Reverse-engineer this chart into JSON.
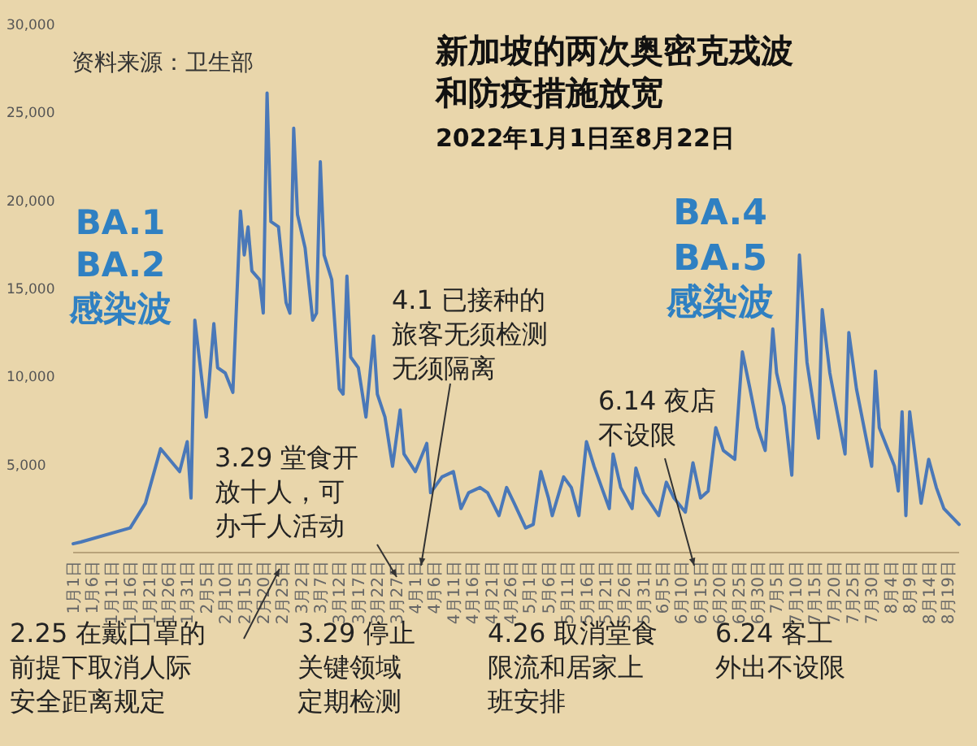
{
  "chart_data": {
    "type": "line",
    "title": "新加坡的两次奥密克戎波和防疫措施放宽",
    "subtitle": "2022年1月1日至8月22日",
    "annotations": [
      "资料来源：卫生部",
      "BA.1 BA.2 感染波",
      "BA.4 BA.5 感染波",
      "2.25 在戴口罩的前提下取消人际安全距离规定",
      "3.29 堂食开放十人，可办千人活动",
      "3.29 停止关键领域定期检测",
      "4.1 已接种的旅客无须检测无须隔离",
      "4.26 取消堂食限流和居家上班安排",
      "6.14 夜店不设限",
      "6.24 客工外出不设限"
    ],
    "x": [
      "2022-01-01",
      "2022-01-03",
      "2022-01-16",
      "2022-01-20",
      "2022-01-24",
      "2022-01-29",
      "2022-01-31",
      "2022-02-01",
      "2022-02-02",
      "2022-02-05",
      "2022-02-07",
      "2022-02-08",
      "2022-02-10",
      "2022-02-12",
      "2022-02-14",
      "2022-02-15",
      "2022-02-16",
      "2022-02-17",
      "2022-02-19",
      "2022-02-20",
      "2022-02-21",
      "2022-02-22",
      "2022-02-24",
      "2022-02-26",
      "2022-02-27",
      "2022-02-28",
      "2022-03-01",
      "2022-03-03",
      "2022-03-05",
      "2022-03-06",
      "2022-03-07",
      "2022-03-08",
      "2022-03-10",
      "2022-03-12",
      "2022-03-13",
      "2022-03-14",
      "2022-03-15",
      "2022-03-17",
      "2022-03-19",
      "2022-03-21",
      "2022-03-22",
      "2022-03-24",
      "2022-03-26",
      "2022-03-28",
      "2022-03-29",
      "2022-04-01",
      "2022-04-04",
      "2022-04-05",
      "2022-04-08",
      "2022-04-11",
      "2022-04-13",
      "2022-04-15",
      "2022-04-18",
      "2022-04-20",
      "2022-04-23",
      "2022-04-25",
      "2022-04-27",
      "2022-04-30",
      "2022-05-02",
      "2022-05-04",
      "2022-05-06",
      "2022-05-07",
      "2022-05-10",
      "2022-05-12",
      "2022-05-14",
      "2022-05-16",
      "2022-05-18",
      "2022-05-20",
      "2022-05-22",
      "2022-05-23",
      "2022-05-25",
      "2022-05-28",
      "2022-05-29",
      "2022-05-31",
      "2022-06-04",
      "2022-06-06",
      "2022-06-08",
      "2022-06-11",
      "2022-06-13",
      "2022-06-15",
      "2022-06-17",
      "2022-06-19",
      "2022-06-21",
      "2022-06-24",
      "2022-06-26",
      "2022-06-28",
      "2022-06-30",
      "2022-07-02",
      "2022-07-04",
      "2022-07-05",
      "2022-07-07",
      "2022-07-09",
      "2022-07-11",
      "2022-07-13",
      "2022-07-16",
      "2022-07-17",
      "2022-07-19",
      "2022-07-23",
      "2022-07-24",
      "2022-07-26",
      "2022-07-30",
      "2022-07-31",
      "2022-08-01",
      "2022-08-05",
      "2022-08-06",
      "2022-08-07",
      "2022-08-08",
      "2022-08-09",
      "2022-08-12",
      "2022-08-14",
      "2022-08-16",
      "2022-08-18",
      "2022-08-22"
    ],
    "series": [
      {
        "color": "#4a78b8",
        "values": [
          500,
          600,
          1400,
          2800,
          5900,
          4600,
          6300,
          3100,
          13200,
          7700,
          13000,
          10500,
          10200,
          9100,
          19400,
          16900,
          18500,
          16000,
          15500,
          13600,
          26100,
          18800,
          18500,
          14200,
          13600,
          24100,
          19200,
          17300,
          13200,
          13600,
          22200,
          16900,
          15500,
          9300,
          9000,
          15700,
          11100,
          10500,
          7700,
          12300,
          9000,
          7700,
          4900,
          8100,
          5600,
          4600,
          6200,
          3400,
          4300,
          4600,
          2500,
          3400,
          3700,
          3400,
          2100,
          3700,
          2800,
          1400,
          1600,
          4600,
          3100,
          2100,
          4300,
          3700,
          2100,
          6300,
          4900,
          3700,
          2500,
          5600,
          3700,
          2500,
          4800,
          3400,
          2100,
          4000,
          3100,
          2300,
          5100,
          3100,
          3500,
          7100,
          5800,
          5300,
          11400,
          9300,
          7100,
          5800,
          12700,
          10200,
          8300,
          4400,
          16900,
          10800,
          6500,
          13800,
          10200,
          5600,
          12500,
          9300,
          4900,
          10300,
          7100,
          4900,
          3500,
          8000,
          2100,
          8000,
          2800,
          5300,
          3700,
          2500,
          1600
        ]
      }
    ],
    "ylim": [
      0,
      30000
    ],
    "yticks": [
      {
        "value": 5000,
        "label": "5,000"
      },
      {
        "value": 10000,
        "label": "10,000"
      },
      {
        "value": 15000,
        "label": "15,000"
      },
      {
        "value": 20000,
        "label": "20,000"
      },
      {
        "value": 25000,
        "label": "25,000"
      },
      {
        "value": 30000,
        "label": "30,000"
      }
    ],
    "xlim": [
      "2022-01-01",
      "2022-08-22"
    ],
    "xticks": [
      {
        "value": "2022-01-01",
        "label": "1月1日"
      },
      {
        "value": "2022-01-06",
        "label": "1月6日"
      },
      {
        "value": "2022-01-11",
        "label": "1月11日"
      },
      {
        "value": "2022-01-16",
        "label": "1月16日"
      },
      {
        "value": "2022-01-21",
        "label": "1月21日"
      },
      {
        "value": "2022-01-26",
        "label": "1月26日"
      },
      {
        "value": "2022-01-31",
        "label": "1月31日"
      },
      {
        "value": "2022-02-05",
        "label": "2月5日"
      },
      {
        "value": "2022-02-10",
        "label": "2月10日"
      },
      {
        "value": "2022-02-15",
        "label": "2月15日"
      },
      {
        "value": "2022-02-20",
        "label": "2月20日"
      },
      {
        "value": "2022-02-25",
        "label": "2月25日"
      },
      {
        "value": "2022-03-02",
        "label": "3月2日"
      },
      {
        "value": "2022-03-07",
        "label": "3月7日"
      },
      {
        "value": "2022-03-12",
        "label": "3月12日"
      },
      {
        "value": "2022-03-17",
        "label": "3月17日"
      },
      {
        "value": "2022-03-22",
        "label": "3月22日"
      },
      {
        "value": "2022-03-27",
        "label": "3月27日"
      },
      {
        "value": "2022-04-01",
        "label": "4月1日"
      },
      {
        "value": "2022-04-06",
        "label": "4月6日"
      },
      {
        "value": "2022-04-11",
        "label": "4月11日"
      },
      {
        "value": "2022-04-16",
        "label": "4月16日"
      },
      {
        "value": "2022-04-21",
        "label": "4月21日"
      },
      {
        "value": "2022-04-26",
        "label": "4月26日"
      },
      {
        "value": "2022-05-01",
        "label": "5月1日"
      },
      {
        "value": "2022-05-06",
        "label": "5月6日"
      },
      {
        "value": "2022-05-11",
        "label": "5月11日"
      },
      {
        "value": "2022-05-16",
        "label": "5月16日"
      },
      {
        "value": "2022-05-21",
        "label": "5月21日"
      },
      {
        "value": "2022-05-26",
        "label": "5月26日"
      },
      {
        "value": "2022-05-31",
        "label": "5月31日"
      },
      {
        "value": "2022-06-05",
        "label": "6月5日"
      },
      {
        "value": "2022-06-10",
        "label": "6月10日"
      },
      {
        "value": "2022-06-15",
        "label": "6月15日"
      },
      {
        "value": "2022-06-20",
        "label": "6月20日"
      },
      {
        "value": "2022-06-25",
        "label": "6月25日"
      },
      {
        "value": "2022-06-30",
        "label": "6月30日"
      },
      {
        "value": "2022-07-05",
        "label": "7月5日"
      },
      {
        "value": "2022-07-10",
        "label": "7月10日"
      },
      {
        "value": "2022-07-15",
        "label": "7月15日"
      },
      {
        "value": "2022-07-20",
        "label": "7月20日"
      },
      {
        "value": "2022-07-25",
        "label": "7月25日"
      },
      {
        "value": "2022-07-30",
        "label": "7月30日"
      },
      {
        "value": "2022-08-04",
        "label": "8月4日"
      },
      {
        "value": "2022-08-09",
        "label": "8月9日"
      },
      {
        "value": "2022-08-14",
        "label": "8月14日"
      },
      {
        "value": "2022-08-19",
        "label": "8月19日"
      }
    ]
  }
}
